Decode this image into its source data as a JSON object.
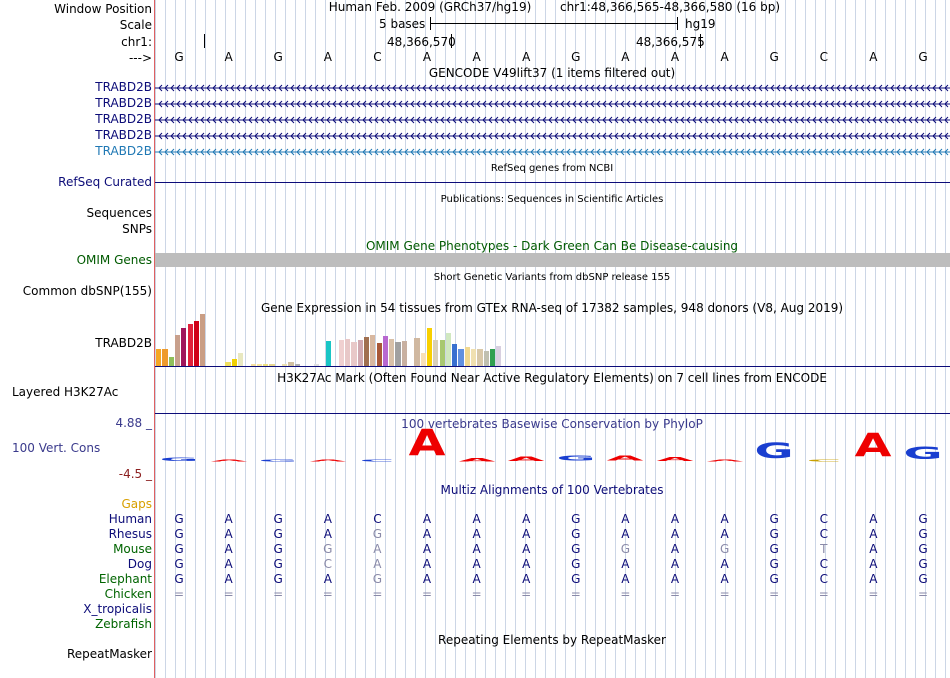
{
  "sidebar": {
    "window_position": "Window Position",
    "scale": "Scale",
    "chrom": "chr1:",
    "strand": "--->",
    "gencode_tracks": [
      "TRABD2B",
      "TRABD2B",
      "TRABD2B",
      "TRABD2B",
      "TRABD2B"
    ],
    "refseq": "RefSeq Curated",
    "sequences": "Sequences",
    "snps": "SNPs",
    "omim": "OMIM Genes",
    "common_dbsnp": "Common dbSNP(155)",
    "gtex_gene": "TRABD2B",
    "h3k27ac": "Layered H3K27Ac",
    "phylop_max": "4.88 _",
    "phylop_label": "100 Vert. Cons",
    "phylop_min": "-4.5 _",
    "gaps": "Gaps",
    "species": [
      "Human",
      "Rhesus",
      "Mouse",
      "Dog",
      "Elephant",
      "Chicken",
      "X_tropicalis",
      "Zebrafish"
    ],
    "repeatmasker": "RepeatMasker"
  },
  "header": {
    "assembly": "Human Feb. 2009 (GRCh37/hg19)",
    "position": "chr1:48,366,565-48,366,580 (16 bp)",
    "scale_text": "5 bases",
    "scale_db": "hg19",
    "coord1": "48,366,570",
    "coord2": "48,366,575"
  },
  "sequence": [
    "G",
    "A",
    "G",
    "A",
    "C",
    "A",
    "A",
    "A",
    "G",
    "A",
    "A",
    "A",
    "G",
    "C",
    "A",
    "G"
  ],
  "titles": {
    "gencode": "GENCODE V49lift37 (1 items filtered out)",
    "refseq": "RefSeq genes from NCBI",
    "pubs": "Publications: Sequences in Scientific Articles",
    "omim": "OMIM Gene Phenotypes - Dark Green Can Be Disease-causing",
    "dbsnp": "Short Genetic Variants from dbSNP release 155",
    "gtex": "Gene Expression in 54 tissues from GTEx RNA-seq of 17382 samples, 948 donors (V8, Aug 2019)",
    "h3k27ac": "H3K27Ac Mark (Often Found Near Active Regulatory Elements) on 7 cell lines from ENCODE",
    "phylop": "100 vertebrates Basewise Conservation by PhyloP",
    "multiz": "Multiz Alignments of 100 Vertebrates",
    "repeatmasker": "Repeating Elements by RepeatMasker"
  },
  "colors": {
    "gencode_dark": "#0c0c78",
    "gencode_light": "#1f78b4",
    "omim_green": "#005a00",
    "gaps_orange": "#d8a000",
    "species_navy": "#0c0c78",
    "species_green": "#006400",
    "phylop_red": "#ee0000",
    "phylop_blue": "#1a3fd0"
  },
  "gtex_values": [
    0.33,
    0.33,
    0.17,
    0.6,
    0.73,
    0.8,
    0.87,
    1.0,
    0.5,
    0.0,
    0.0,
    0.08,
    0.13,
    0.25,
    0.0,
    0.04,
    0.04,
    0.04,
    0.04,
    0.0,
    0.04,
    0.08,
    0.04,
    0.0,
    0.0,
    0.04,
    0.0,
    0.48,
    0.0,
    0.5,
    0.52,
    0.47,
    0.5,
    0.56,
    0.6,
    0.44,
    0.58,
    0.52,
    0.46,
    0.48,
    0.0,
    0.54,
    0.25,
    0.73,
    0.5,
    0.5,
    0.63,
    0.42,
    0.33,
    0.36,
    0.33,
    0.33,
    0.29,
    0.33,
    0.38
  ],
  "gtex_colors": [
    "#f5a623",
    "#ee9b2c",
    "#8fbf5a",
    "#c8a08c",
    "#a0155a",
    "#e0203a",
    "#d00018",
    "#ca9e84",
    "#fff",
    "#fff",
    "#fff",
    "#f0e060",
    "#f0d000",
    "#e8e8c0",
    "#fff",
    "#f5e0a0",
    "#f8e8a0",
    "#ede080",
    "#e8d890",
    "#fff",
    "#ece0b0",
    "#d0c0a0",
    "#b0b0b0",
    "#fff",
    "#fff",
    "#e0e0e0",
    "#fff",
    "#19c5c5",
    "#fff",
    "#f0d0d0",
    "#e8c8c8",
    "#e8c8c8",
    "#d0a8b0",
    "#a07050",
    "#d8b8a0",
    "#a85838",
    "#b868d0",
    "#d8c0a8",
    "#a0a0a0",
    "#c8b0a0",
    "#fff",
    "#d0b8a0",
    "#f8e0b8",
    "#f8d000",
    "#d8d0b8",
    "#a8c870",
    "#d0e8c0",
    "#3870d0",
    "#6090e0",
    "#f0d890",
    "#f0e0b0",
    "#d8c8a8",
    "#c0c0b0",
    "#30a050",
    "#d8d0e0"
  ],
  "phylop": [
    {
      "base": "G",
      "score": 0.55,
      "color": "#1a3fd0"
    },
    {
      "base": "A",
      "score": 0.1,
      "color": "#ee0000"
    },
    {
      "base": "G",
      "score": 0.1,
      "color": "#1a3fd0"
    },
    {
      "base": "A",
      "score": 0.0,
      "color": "#ee0000"
    },
    {
      "base": "C",
      "score": 0.0,
      "color": "#1a3fd0"
    },
    {
      "base": "A",
      "score": 4.4,
      "color": "#ee0000"
    },
    {
      "base": "A",
      "score": 0.5,
      "color": "#ee0000"
    },
    {
      "base": "A",
      "score": 0.7,
      "color": "#ee0000"
    },
    {
      "base": "G",
      "score": 0.9,
      "color": "#1a3fd0"
    },
    {
      "base": "A",
      "score": 0.9,
      "color": "#ee0000"
    },
    {
      "base": "A",
      "score": 0.6,
      "color": "#ee0000"
    },
    {
      "base": "A",
      "score": 0.1,
      "color": "#ee0000"
    },
    {
      "base": "G",
      "score": 2.6,
      "color": "#1a3fd0"
    },
    {
      "base": "C",
      "score": 0.1,
      "color": "#c8a000"
    },
    {
      "base": "A",
      "score": 3.9,
      "color": "#ee0000"
    },
    {
      "base": "G",
      "score": 2.0,
      "color": "#1a3fd0"
    }
  ],
  "alignments": [
    {
      "bases": [
        "G",
        "A",
        "G",
        "A",
        "C",
        "A",
        "A",
        "A",
        "G",
        "A",
        "A",
        "A",
        "G",
        "C",
        "A",
        "G"
      ],
      "grey": []
    },
    {
      "bases": [
        "G",
        "A",
        "G",
        "A",
        "G",
        "A",
        "A",
        "A",
        "G",
        "A",
        "A",
        "A",
        "G",
        "C",
        "A",
        "G"
      ],
      "grey": [
        4
      ]
    },
    {
      "bases": [
        "G",
        "A",
        "G",
        "G",
        "A",
        "A",
        "A",
        "A",
        "G",
        "G",
        "A",
        "G",
        "G",
        "T",
        "A",
        "G"
      ],
      "grey": [
        3,
        4,
        9,
        11,
        13
      ]
    },
    {
      "bases": [
        "G",
        "A",
        "G",
        "C",
        "A",
        "A",
        "A",
        "A",
        "G",
        "A",
        "A",
        "A",
        "G",
        "C",
        "A",
        "G"
      ],
      "grey": [
        3,
        4
      ]
    },
    {
      "bases": [
        "G",
        "A",
        "G",
        "A",
        "G",
        "A",
        "A",
        "A",
        "G",
        "A",
        "A",
        "A",
        "G",
        "C",
        "A",
        "G"
      ],
      "grey": [
        4
      ]
    },
    {
      "bases": [
        "=",
        "=",
        "=",
        "=",
        "=",
        "=",
        "=",
        "=",
        "=",
        "=",
        "=",
        "=",
        "=",
        "=",
        "=",
        "="
      ],
      "grey": []
    }
  ]
}
